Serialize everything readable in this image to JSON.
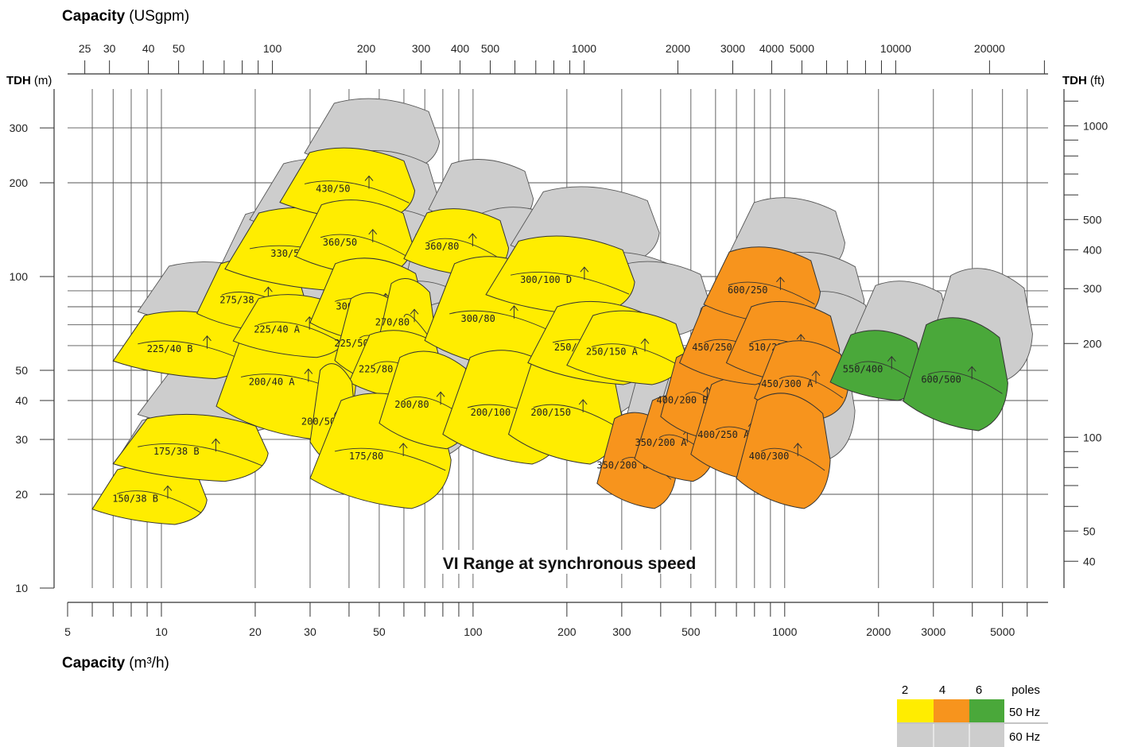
{
  "chart_data": {
    "type": "area",
    "title": "VI Range at synchronous speed",
    "top_axis": {
      "label_bold": "Capacity",
      "label_unit": "(USgpm)",
      "ticks": [
        25,
        30,
        40,
        50,
        100,
        200,
        300,
        400,
        500,
        1000,
        2000,
        3000,
        4000,
        5000,
        10000,
        20000
      ]
    },
    "bottom_axis": {
      "label_bold": "Capacity",
      "label_unit": "(m³/h)",
      "range": [
        5,
        7000
      ],
      "ticks": [
        5,
        10,
        20,
        30,
        50,
        100,
        200,
        300,
        500,
        1000,
        2000,
        3000,
        5000
      ]
    },
    "left_axis": {
      "label_bold": "TDH",
      "label_unit": "(m)",
      "range": [
        10,
        400
      ],
      "scale": "log",
      "ticks": [
        10,
        20,
        30,
        40,
        50,
        100,
        200,
        300
      ]
    },
    "right_axis": {
      "label_bold": "TDH",
      "label_unit": "(ft)",
      "ticks": [
        40,
        50,
        100,
        200,
        300,
        400,
        500,
        1000
      ]
    },
    "grid": true,
    "legend": {
      "placement": "bottom-right",
      "columns": [
        "2",
        "4",
        "6"
      ],
      "columns_label": "poles",
      "rows": [
        {
          "label": "50 Hz",
          "colors": [
            "#ffed00",
            "#f7941d",
            "#4aa83a"
          ]
        },
        {
          "label": "60 Hz",
          "colors": [
            "#cdcdcd",
            "#cdcdcd",
            "#cdcdcd"
          ]
        }
      ]
    },
    "series": [
      {
        "name": "150/38 B",
        "poles": 2,
        "q": [
          6,
          14
        ],
        "h": [
          16,
          24
        ]
      },
      {
        "name": "175/38 B",
        "poles": 2,
        "q": [
          7,
          22
        ],
        "h": [
          22,
          35
        ]
      },
      {
        "name": "225/40 B",
        "poles": 2,
        "q": [
          7,
          20
        ],
        "h": [
          47,
          75
        ]
      },
      {
        "name": "275/38",
        "poles": 2,
        "q": [
          13,
          29
        ],
        "h": [
          66,
          110
        ]
      },
      {
        "name": "200/40 A",
        "poles": 2,
        "q": [
          15,
          42
        ],
        "h": [
          30,
          72
        ]
      },
      {
        "name": "225/40 A",
        "poles": 2,
        "q": [
          17,
          40
        ],
        "h": [
          55,
          85
        ]
      },
      {
        "name": "330/50",
        "poles": 2,
        "q": [
          16,
          50
        ],
        "h": [
          90,
          160
        ]
      },
      {
        "name": "430/50",
        "poles": 2,
        "q": [
          24,
          65
        ],
        "h": [
          150,
          250
        ]
      },
      {
        "name": "360/50",
        "poles": 2,
        "q": [
          27,
          64
        ],
        "h": [
          100,
          170
        ]
      },
      {
        "name": "300/38",
        "poles": 2,
        "q": [
          30,
          70
        ],
        "h": [
          60,
          110
        ]
      },
      {
        "name": "225/50 B",
        "poles": 2,
        "q": [
          36,
          62
        ],
        "h": [
          45,
          85
        ]
      },
      {
        "name": "270/80",
        "poles": 2,
        "q": [
          50,
          75
        ],
        "h": [
          55,
          95
        ]
      },
      {
        "name": "225/80 B",
        "poles": 2,
        "q": [
          40,
          80
        ],
        "h": [
          40,
          65
        ]
      },
      {
        "name": "200/50",
        "poles": 2,
        "q": [
          30,
          42
        ],
        "h": [
          24,
          50
        ]
      },
      {
        "name": "175/80",
        "poles": 2,
        "q": [
          30,
          85
        ],
        "h": [
          18,
          40
        ]
      },
      {
        "name": "200/80",
        "poles": 2,
        "q": [
          50,
          100
        ],
        "h": [
          28,
          55
        ]
      },
      {
        "name": "360/80",
        "poles": 2,
        "q": [
          60,
          130
        ],
        "h": [
          100,
          160
        ]
      },
      {
        "name": "300/80",
        "poles": 2,
        "q": [
          70,
          190
        ],
        "h": [
          50,
          110
        ]
      },
      {
        "name": "300/100 D",
        "poles": 2,
        "q": [
          110,
          330
        ],
        "h": [
          75,
          130
        ]
      },
      {
        "name": "200/100",
        "poles": 2,
        "q": [
          80,
          200
        ],
        "h": [
          25,
          55
        ]
      },
      {
        "name": "200/150",
        "poles": 2,
        "q": [
          130,
          300
        ],
        "h": [
          25,
          55
        ]
      },
      {
        "name": "250/150 B",
        "poles": 2,
        "q": [
          150,
          400
        ],
        "h": [
          45,
          80
        ]
      },
      {
        "name": "250/150 A",
        "poles": 2,
        "q": [
          200,
          480
        ],
        "h": [
          45,
          75
        ]
      },
      {
        "name": "350/200 B",
        "poles": 4,
        "q": [
          250,
          450
        ],
        "h": [
          18,
          35
        ]
      },
      {
        "name": "350/200 A",
        "poles": 4,
        "q": [
          330,
          600
        ],
        "h": [
          22,
          40
        ]
      },
      {
        "name": "400/200 B",
        "poles": 4,
        "q": [
          400,
          680
        ],
        "h": [
          30,
          55
        ]
      },
      {
        "name": "400/250 A",
        "poles": 4,
        "q": [
          500,
          1000
        ],
        "h": [
          22,
          45
        ]
      },
      {
        "name": "450/250 B",
        "poles": 4,
        "q": [
          460,
          1000
        ],
        "h": [
          45,
          80
        ]
      },
      {
        "name": "600/250",
        "poles": 4,
        "q": [
          550,
          1300
        ],
        "h": [
          70,
          120
        ]
      },
      {
        "name": "510/250",
        "poles": 4,
        "q": [
          650,
          1500
        ],
        "h": [
          45,
          80
        ]
      },
      {
        "name": "450/300 A",
        "poles": 4,
        "q": [
          800,
          1600
        ],
        "h": [
          35,
          60
        ]
      },
      {
        "name": "400/300",
        "poles": 4,
        "q": [
          700,
          1400
        ],
        "h": [
          18,
          40
        ]
      },
      {
        "name": "550/400",
        "poles": 6,
        "q": [
          1400,
          2800
        ],
        "h": [
          40,
          65
        ]
      },
      {
        "name": "600/500",
        "poles": 6,
        "q": [
          2400,
          5200
        ],
        "h": [
          32,
          70
        ]
      }
    ]
  }
}
